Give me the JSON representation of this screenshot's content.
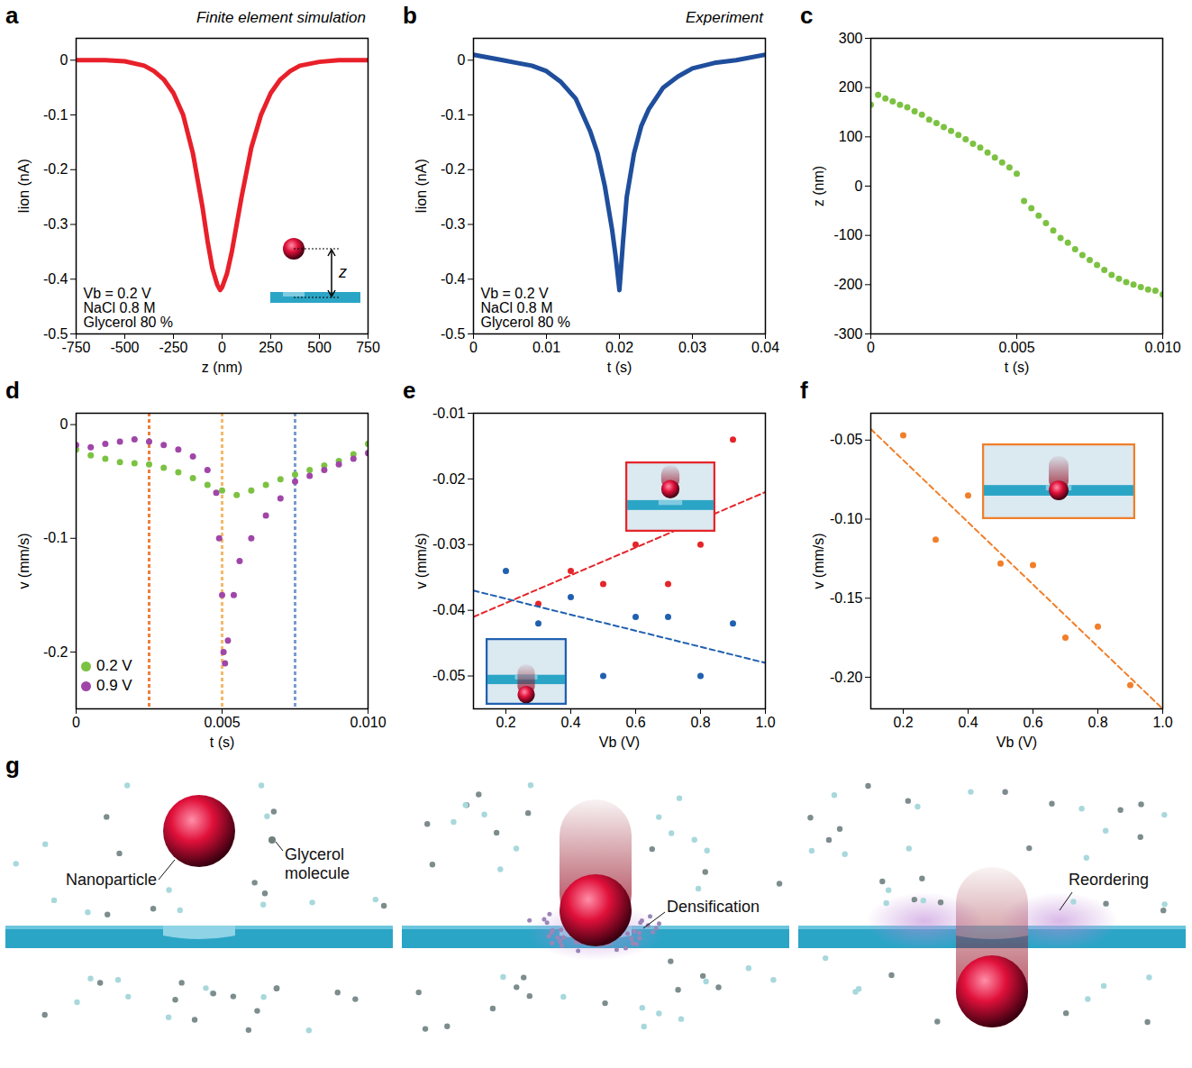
{
  "chart_data": [
    {
      "panel_label": "a",
      "title": "Finite element simulation",
      "type": "line",
      "x_label": "z (nm)",
      "y_label": "Iion (nA)",
      "xlim": [
        -750,
        750
      ],
      "xticks": [
        -750,
        -500,
        -250,
        0,
        250,
        500,
        750
      ],
      "ylim": [
        -0.5,
        0.04
      ],
      "yticks": [
        -0.5,
        -0.4,
        -0.3,
        -0.2,
        -0.1,
        0
      ],
      "annotations": [
        "Vb = 0.2 V",
        "NaCl 0.8 M",
        "Glycerol 80 %"
      ],
      "inset_label": "z",
      "series": [
        {
          "color": "#e8202a",
          "line_style": "solid",
          "x": [
            -750,
            -600,
            -500,
            -400,
            -350,
            -300,
            -250,
            -200,
            -150,
            -100,
            -75,
            -50,
            -25,
            -10,
            0,
            25,
            50,
            75,
            100,
            150,
            200,
            250,
            300,
            350,
            400,
            500,
            600,
            750
          ],
          "values": [
            0,
            0,
            -0.002,
            -0.01,
            -0.02,
            -0.035,
            -0.06,
            -0.1,
            -0.17,
            -0.27,
            -0.33,
            -0.38,
            -0.41,
            -0.42,
            -0.415,
            -0.39,
            -0.35,
            -0.3,
            -0.25,
            -0.16,
            -0.1,
            -0.06,
            -0.035,
            -0.02,
            -0.01,
            -0.003,
            0,
            0
          ]
        }
      ]
    },
    {
      "panel_label": "b",
      "title": "Experiment",
      "type": "line",
      "x_label": "t (s)",
      "y_label": "Iion (nA)",
      "xlim": [
        0,
        0.04
      ],
      "xticks": [
        0,
        0.01,
        0.02,
        0.03,
        0.04
      ],
      "ylim": [
        -0.5,
        0.04
      ],
      "yticks": [
        -0.5,
        -0.4,
        -0.3,
        -0.2,
        -0.1,
        0
      ],
      "annotations": [
        "Vb = 0.2 V",
        "NaCl 0.8 M",
        "Glycerol 80 %"
      ],
      "series": [
        {
          "color": "#1f4e9c",
          "line_style": "solid",
          "x": [
            0,
            0.002,
            0.004,
            0.006,
            0.008,
            0.01,
            0.012,
            0.014,
            0.015,
            0.016,
            0.017,
            0.018,
            0.019,
            0.0195,
            0.02,
            0.0205,
            0.021,
            0.022,
            0.023,
            0.024,
            0.026,
            0.028,
            0.03,
            0.033,
            0.036,
            0.04
          ],
          "values": [
            0.01,
            0.005,
            0,
            -0.005,
            -0.01,
            -0.02,
            -0.04,
            -0.07,
            -0.1,
            -0.13,
            -0.17,
            -0.23,
            -0.31,
            -0.36,
            -0.42,
            -0.33,
            -0.25,
            -0.17,
            -0.12,
            -0.09,
            -0.05,
            -0.03,
            -0.015,
            -0.005,
            0,
            0.01
          ]
        }
      ]
    },
    {
      "panel_label": "c",
      "type": "scatter",
      "x_label": "t (s)",
      "y_label": "z (nm)",
      "xlim": [
        0,
        0.01
      ],
      "xticks": [
        0,
        0.005,
        {
          "value": 0.01,
          "label": "0.010"
        }
      ],
      "ylim": [
        -300,
        300
      ],
      "yticks": [
        -300,
        -200,
        -100,
        0,
        100,
        200,
        300
      ],
      "series": [
        {
          "color": "#7cc242",
          "marker": "dot",
          "x": [
            0,
            0.00025,
            0.0005,
            0.00075,
            0.001,
            0.00125,
            0.0015,
            0.00175,
            0.002,
            0.00225,
            0.0025,
            0.00275,
            0.003,
            0.00325,
            0.0035,
            0.00375,
            0.004,
            0.00425,
            0.0045,
            0.00475,
            0.005,
            0.00525,
            0.0055,
            0.00575,
            0.006,
            0.00625,
            0.0065,
            0.00675,
            0.007,
            0.00725,
            0.0075,
            0.00775,
            0.008,
            0.00825,
            0.0085,
            0.00875,
            0.009,
            0.00925,
            0.0095,
            0.00975,
            0.01
          ],
          "values": [
            165,
            185,
            178,
            172,
            165,
            160,
            152,
            145,
            135,
            128,
            120,
            112,
            104,
            95,
            86,
            78,
            68,
            58,
            48,
            38,
            25,
            -30,
            -45,
            -60,
            -75,
            -90,
            -105,
            -115,
            -128,
            -140,
            -150,
            -160,
            -170,
            -180,
            -188,
            -195,
            -200,
            -205,
            -210,
            -212,
            -220
          ]
        }
      ]
    },
    {
      "panel_label": "d",
      "type": "scatter",
      "x_label": "t (s)",
      "y_label": "v (mm/s)",
      "xlim": [
        0,
        0.01
      ],
      "xticks": [
        0,
        0.005,
        {
          "value": 0.01,
          "label": "0.010"
        }
      ],
      "ylim": [
        -0.25,
        0.01
      ],
      "yticks": [
        -0.2,
        -0.1,
        0
      ],
      "legend": "bottom-left",
      "vlines": [
        {
          "value": 0.0025,
          "color": "#f07f3c"
        },
        {
          "value": 0.005,
          "color": "#f5b96a"
        },
        {
          "value": 0.0075,
          "color": "#7a9bd0"
        }
      ],
      "series": [
        {
          "name": "0.2 V",
          "color": "#7cc242",
          "marker": "dot",
          "x": [
            0,
            0.0005,
            0.001,
            0.0015,
            0.002,
            0.0025,
            0.003,
            0.0035,
            0.004,
            0.0045,
            0.005,
            0.0055,
            0.006,
            0.0065,
            0.007,
            0.0075,
            0.008,
            0.0085,
            0.009,
            0.0095,
            0.01
          ],
          "values": [
            -0.022,
            -0.027,
            -0.03,
            -0.033,
            -0.034,
            -0.035,
            -0.038,
            -0.042,
            -0.047,
            -0.053,
            -0.058,
            -0.062,
            -0.058,
            -0.053,
            -0.048,
            -0.044,
            -0.04,
            -0.036,
            -0.032,
            -0.026,
            -0.017
          ]
        },
        {
          "name": "0.9 V",
          "color": "#a046a8",
          "marker": "dot",
          "x": [
            0,
            0.0005,
            0.001,
            0.0015,
            0.002,
            0.0025,
            0.003,
            0.0035,
            0.004,
            0.0045,
            0.0048,
            0.0049,
            0.005,
            0.00505,
            0.0051,
            0.0052,
            0.0054,
            0.0056,
            0.006,
            0.0065,
            0.007,
            0.0075,
            0.008,
            0.0085,
            0.009,
            0.0095,
            0.01
          ],
          "values": [
            -0.018,
            -0.02,
            -0.017,
            -0.015,
            -0.013,
            -0.015,
            -0.018,
            -0.022,
            -0.028,
            -0.04,
            -0.06,
            -0.1,
            -0.15,
            -0.2,
            -0.21,
            -0.19,
            -0.15,
            -0.12,
            -0.1,
            -0.08,
            -0.065,
            -0.05,
            -0.045,
            -0.04,
            -0.035,
            -0.03,
            -0.025
          ]
        }
      ]
    },
    {
      "panel_label": "e",
      "type": "scatter",
      "x_label": "Vb (V)",
      "y_label": "v (mm/s)",
      "xlim": [
        0.1,
        1
      ],
      "xticks": [
        0.2,
        0.4,
        0.6,
        0.8,
        {
          "value": 1,
          "label": "1.0"
        }
      ],
      "ylim": [
        -0.055,
        -0.01
      ],
      "yticks": [
        -0.05,
        -0.04,
        -0.03,
        -0.02,
        -0.01
      ],
      "series": [
        {
          "type": "scatter",
          "color": "#e5252a",
          "marker": "dot",
          "x": [
            0.3,
            0.4,
            0.5,
            0.6,
            0.7,
            0.8,
            0.9
          ],
          "values": [
            -0.039,
            -0.034,
            -0.036,
            -0.03,
            -0.036,
            -0.03,
            -0.014
          ]
        },
        {
          "type": "scatter",
          "color": "#2060b0",
          "marker": "dot",
          "x": [
            0.2,
            0.3,
            0.4,
            0.5,
            0.6,
            0.7,
            0.8,
            0.9
          ],
          "values": [
            -0.034,
            -0.042,
            -0.038,
            -0.05,
            -0.041,
            -0.041,
            -0.05,
            -0.042
          ]
        },
        {
          "type": "line",
          "color": "#e5252a",
          "line_style": "dashed",
          "x": [
            0.1,
            1
          ],
          "values": [
            -0.041,
            -0.022
          ]
        },
        {
          "type": "line",
          "color": "#2060b0",
          "line_style": "dashed",
          "x": [
            0.1,
            1
          ],
          "values": [
            -0.037,
            -0.048
          ]
        }
      ]
    },
    {
      "panel_label": "f",
      "type": "scatter",
      "x_label": "Vb (V)",
      "y_label": "v (mm/s)",
      "xlim": [
        0.1,
        1
      ],
      "xticks": [
        0.2,
        0.4,
        0.6,
        0.8,
        {
          "value": 1,
          "label": "1.0"
        }
      ],
      "ylim": [
        -0.22,
        -0.033
      ],
      "yticks": [
        {
          "value": -0.2,
          "label": "-0.20"
        },
        {
          "value": -0.15,
          "label": "-0.15"
        },
        {
          "value": -0.1,
          "label": "-0.10"
        },
        -0.05
      ],
      "series": [
        {
          "type": "scatter",
          "color": "#f07f2a",
          "marker": "dot",
          "x": [
            0.2,
            0.3,
            0.4,
            0.5,
            0.6,
            0.7,
            0.8,
            0.9
          ],
          "values": [
            -0.047,
            -0.113,
            -0.085,
            -0.128,
            -0.129,
            -0.175,
            -0.168,
            -0.205
          ]
        },
        {
          "type": "line",
          "color": "#f07f2a",
          "line_style": "dashed",
          "x": [
            0.1,
            1
          ],
          "values": [
            -0.043,
            -0.22
          ]
        }
      ]
    }
  ],
  "diagram": {
    "panel_label": "g",
    "scenes": [
      {
        "labels": [
          "Nanoparticle",
          "Glycerol molecule"
        ]
      },
      {
        "labels": [
          "Densification"
        ]
      },
      {
        "labels": [
          "Reordering"
        ]
      }
    ]
  }
}
